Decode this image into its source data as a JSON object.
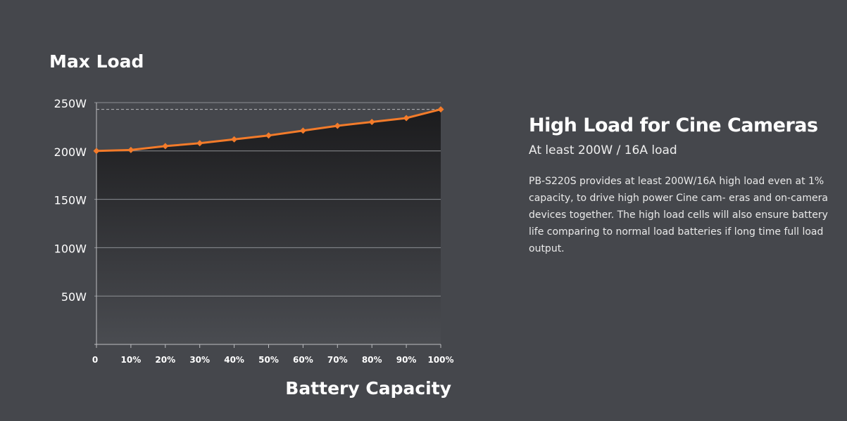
{
  "chart_data": {
    "type": "line",
    "title": "Max Load",
    "xlabel": "Battery Capacity",
    "ylabel": "",
    "x": [
      "0",
      "10%",
      "20%",
      "30%",
      "40%",
      "50%",
      "60%",
      "70%",
      "80%",
      "90%",
      "100%"
    ],
    "series": [
      {
        "values": [
          200,
          201,
          205,
          208,
          212,
          216,
          221,
          226,
          230,
          234,
          243
        ]
      }
    ],
    "yticks": [
      "50W",
      "100W",
      "150W",
      "200W",
      "250W"
    ],
    "ylim": [
      0,
      250
    ],
    "grid": true,
    "reference_line": 243,
    "colors": {
      "line": "#f37b2a",
      "grid": "#8d8f94",
      "reference": "#b8b9bc",
      "axis": "#bdbec1"
    }
  },
  "panel": {
    "title": "High Load for Cine Cameras",
    "subtitle": "At least 200W / 16A load",
    "body": "PB-S220S provides at least 200W/16A high load even at 1% capacity, to drive high power Cine cam- eras and on-camera devices together. The high load cells will also ensure battery life comparing to normal load batteries if long time full load output."
  }
}
